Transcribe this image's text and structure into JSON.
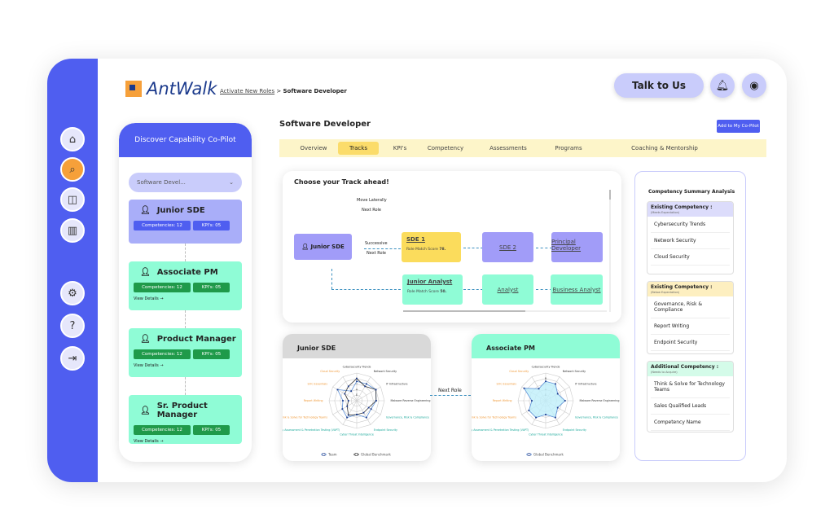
{
  "brand": {
    "name": "AntWalk"
  },
  "breadcrumb": {
    "parent": "Activate New Roles",
    "separator": ">",
    "current": "Software Developer"
  },
  "header": {
    "talk_label": "Talk to Us",
    "bell_icon": "bell-icon",
    "profile_icon": "user-circle-icon"
  },
  "rail": {
    "items": [
      "home-icon",
      "search-icon",
      "layout-icon",
      "chart-icon",
      "settings-icon",
      "help-icon",
      "logout-icon"
    ]
  },
  "copilot": {
    "title": "Discover Capability Co-Pilot",
    "select_value": "Software Devel...",
    "roles": [
      {
        "name": "Junior SDE",
        "competencies": "Competencies: 12",
        "kpis": "KPI's: 05",
        "details": ""
      },
      {
        "name": "Associate PM",
        "competencies": "Competencies: 12",
        "kpis": "KPI's: 05",
        "details": "View Details →"
      },
      {
        "name": "Product Manager",
        "competencies": "Competencies: 12",
        "kpis": "KPI's: 05",
        "details": "View Details →"
      },
      {
        "name": "Sr. Product Manager",
        "competencies": "Competencies: 12",
        "kpis": "KPI's: 05",
        "details": "View Details →"
      }
    ]
  },
  "main": {
    "title": "Software Developer",
    "add_label": "Add to My Co-Pilot",
    "tabs": [
      "Overview",
      "Tracks",
      "KPI's",
      "Competency",
      "Assessments",
      "Programs",
      "Coaching & Mentorship"
    ],
    "active_tab": "Tracks"
  },
  "tracks": {
    "title": "Choose your Track ahead!",
    "lateral_1": "Move Laterally",
    "lateral_2": "Next Role",
    "succ_1": "Successive",
    "succ_2": "Next Role",
    "current": "Junior SDE",
    "sde1": "SDE 1",
    "sde1_score_label": "Role Match Score",
    "sde1_score": "78.",
    "sde2": "SDE 2",
    "principal": "Principal Developer",
    "ja": "Junior Analyst",
    "ja_score_label": "Role Match Score",
    "ja_score": "50.",
    "analyst": "Analyst",
    "ba": "Business Analyst"
  },
  "next_role_label": "Next Role",
  "chart_data": [
    {
      "type": "radar",
      "title": "Junior SDE",
      "axes": [
        "Cybersecurity Trends",
        "Network Security",
        "IT Infrastructure",
        "Malware Reverse Engineering",
        "Governance, Risk & Compliance",
        "Endpoint Security",
        "Cyber Threat Intelligence",
        "Vulnerability Assessment & Penetration Testing (VAPT)",
        "Think & Solve for Technology Teams",
        "Report Writing",
        "SOC Essentials",
        "Cloud Security"
      ],
      "levels": [
        "B",
        "I",
        "A",
        "E"
      ],
      "series": [
        {
          "name": "Team",
          "color": "#5b8fd6",
          "values": [
            3.5,
            3.5,
            4,
            3.5,
            3,
            3.5,
            2.5,
            3.5,
            3,
            2.5,
            4,
            2
          ]
        },
        {
          "name": "Global Benchmark",
          "color": "#333333",
          "values": [
            4,
            3,
            4,
            3.5,
            2.5,
            2.5,
            2.5,
            3,
            2,
            1.5,
            2.5,
            3
          ]
        }
      ]
    },
    {
      "type": "radar",
      "title": "Associate PM",
      "axes": [
        "Cybersecurity Trends",
        "Network Security",
        "IT Infrastructure",
        "Malware Reverse Engineering",
        "Governance, Risk & Compliance",
        "Endpoint Security",
        "Cyber Threat Intelligence",
        "Vulnerability Assessment & Penetration Testing (VAPT)",
        "Think & Solve for Technology Teams",
        "Report Writing",
        "SOC Essentials",
        "Cloud Security"
      ],
      "levels": [
        "B",
        "I",
        "A",
        "E"
      ],
      "series": [
        {
          "name": "Global Benchmark",
          "color": "#5b8fd6",
          "fill": "#bfeffa",
          "values": [
            3.5,
            3.5,
            2.5,
            3.5,
            2.5,
            3.5,
            2.5,
            3.5,
            3.5,
            2.5,
            4.5,
            2.5
          ]
        }
      ]
    }
  ],
  "summary": {
    "title": "Competency Summary Analysis",
    "groups": [
      {
        "title": "Existing Competency :",
        "sub": "(Meets Expectation)",
        "color": "#dcdcfb",
        "items": [
          "Cybersecurity Trends",
          "Network Security",
          "Cloud Security"
        ]
      },
      {
        "title": "Existing Competency :",
        "sub": "(Below Expectation)",
        "color": "#fdefc0",
        "items": [
          "Governance, Risk & Compliance",
          "Report Writing",
          "Endpoint Security"
        ]
      },
      {
        "title": "Additional Competency :",
        "sub": "(Needs to Acquire)",
        "color": "#d4fbe9",
        "items": [
          "Think & Solve for Technology Teams",
          "Sales Qualified Leads",
          "Competency Name"
        ]
      }
    ]
  }
}
